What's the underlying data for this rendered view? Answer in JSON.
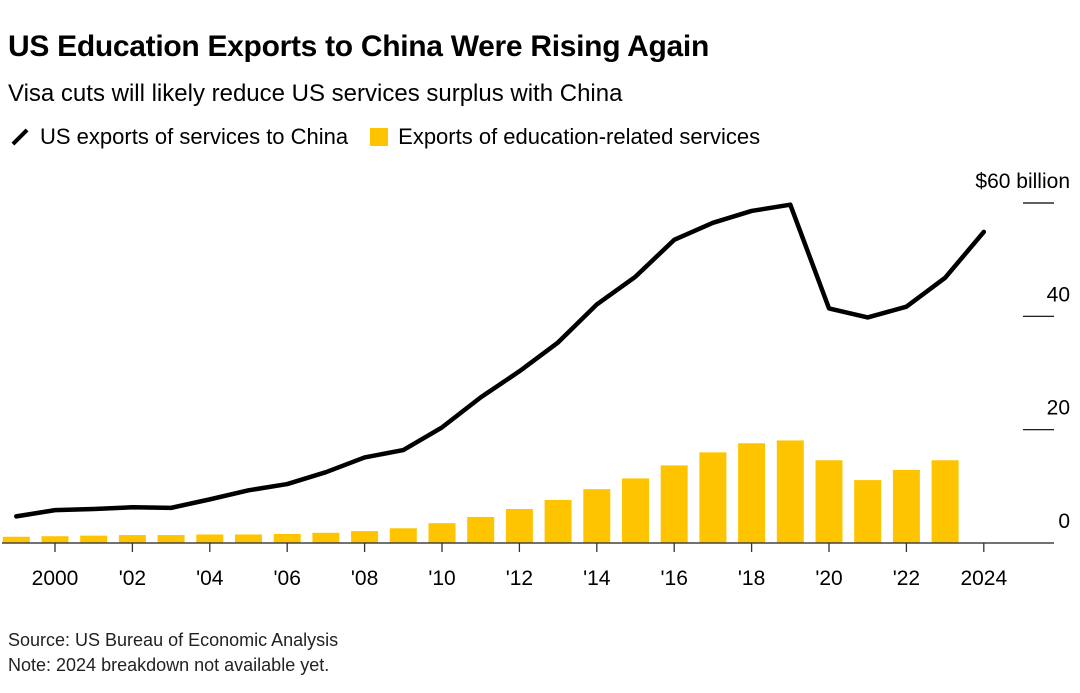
{
  "chart_data": {
    "type": "bar+line",
    "title": "US Education Exports to China Were Rising Again",
    "subtitle": "Visa cuts will likely reduce US services surplus with China",
    "legend": [
      "US exports of services to China",
      "Exports of education-related services"
    ],
    "legend_placement": "top-left",
    "x": [
      1999,
      2000,
      2001,
      2002,
      2003,
      2004,
      2005,
      2006,
      2007,
      2008,
      2009,
      2010,
      2011,
      2012,
      2013,
      2014,
      2015,
      2016,
      2017,
      2018,
      2019,
      2020,
      2021,
      2022,
      2023,
      2024
    ],
    "series": [
      {
        "name": "US exports of services to China",
        "type": "line",
        "color": "#000000",
        "values": [
          4.7,
          5.8,
          6.0,
          6.3,
          6.2,
          7.7,
          9.3,
          10.4,
          12.5,
          15.1,
          16.4,
          20.4,
          25.7,
          30.3,
          35.4,
          42.1,
          47.0,
          53.5,
          56.5,
          58.6,
          59.7,
          41.4,
          39.8,
          41.7,
          46.8,
          54.9
        ]
      },
      {
        "name": "Exports of education-related services",
        "type": "bar",
        "color": "#FFC400",
        "values": [
          1.1,
          1.2,
          1.3,
          1.4,
          1.4,
          1.5,
          1.5,
          1.6,
          1.8,
          2.1,
          2.6,
          3.5,
          4.6,
          6.0,
          7.6,
          9.5,
          11.4,
          13.7,
          16.0,
          17.6,
          18.1,
          14.6,
          11.1,
          12.9,
          14.6,
          null
        ]
      }
    ],
    "xticks": [
      2000,
      2002,
      2004,
      2006,
      2008,
      2010,
      2012,
      2014,
      2016,
      2018,
      2020,
      2022,
      2024
    ],
    "xtick_labels": [
      "2000",
      "'02",
      "'04",
      "'06",
      "'08",
      "'10",
      "'12",
      "'14",
      "'16",
      "'18",
      "'20",
      "'22",
      "2024"
    ],
    "yticks": [
      0,
      20,
      40,
      60
    ],
    "ytick_labels": [
      "0",
      "20",
      "40",
      "$60 billion"
    ],
    "ylim": [
      0,
      60
    ],
    "grid": false
  },
  "footer": {
    "source": "Source: US Bureau of Economic Analysis",
    "note": "Note: 2024 breakdown not available yet."
  }
}
